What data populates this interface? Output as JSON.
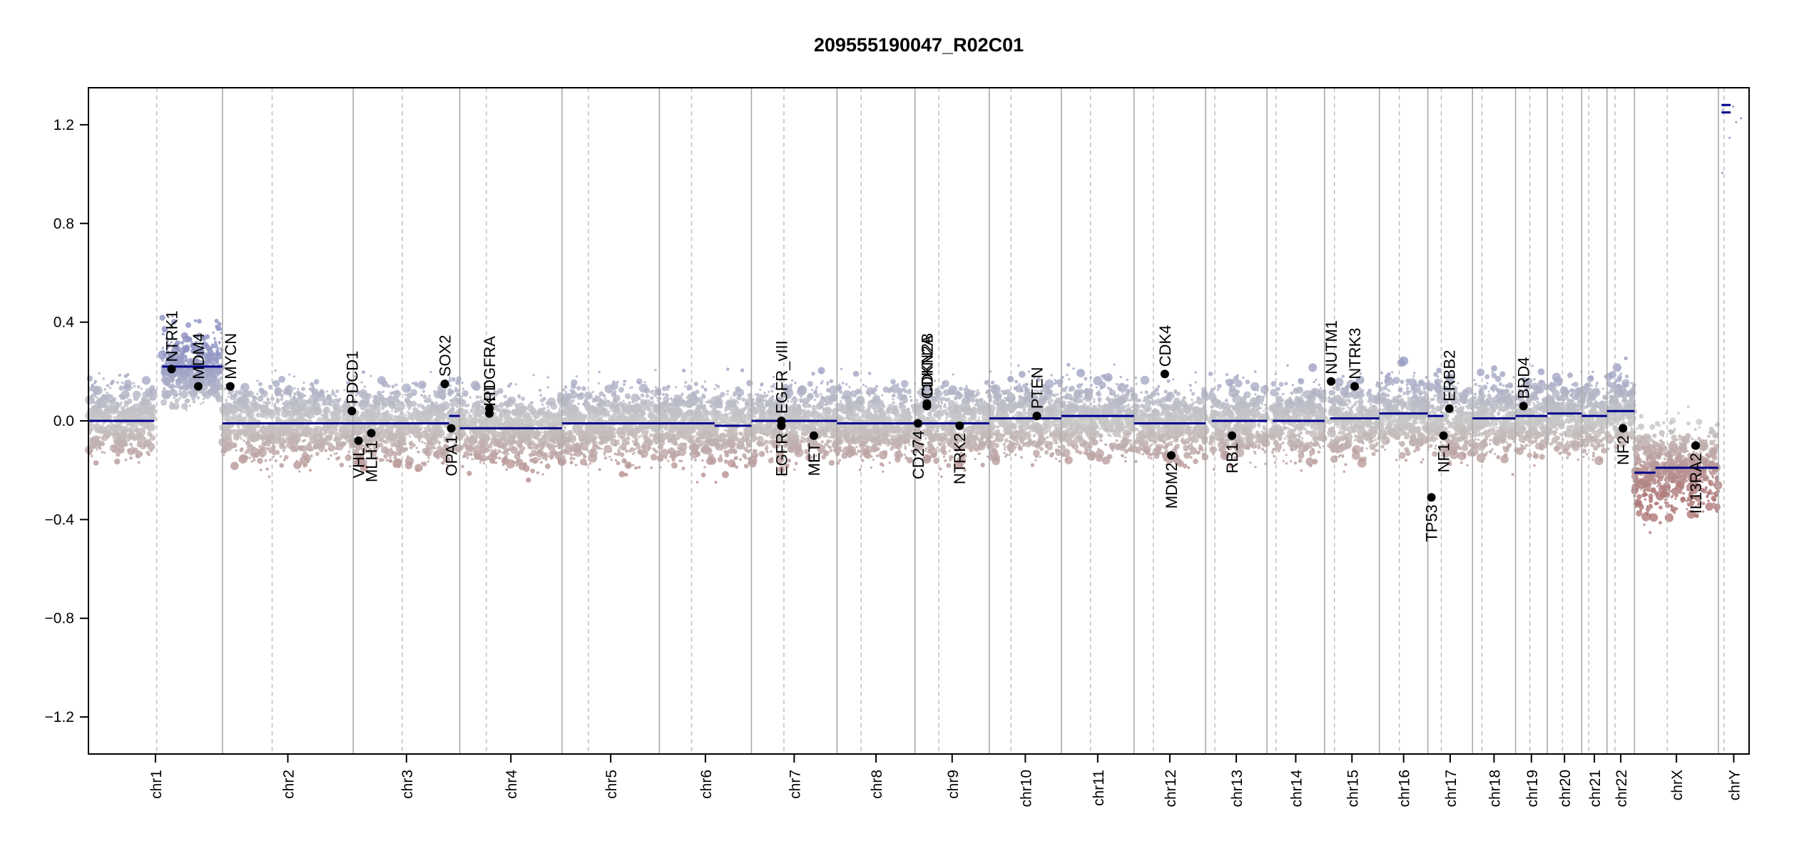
{
  "chart_data": {
    "type": "scatter",
    "title": "209555190047_R02C01",
    "xlabel": "",
    "ylabel": "",
    "ylim": [
      -1.35,
      1.35
    ],
    "y_ticks": [
      -1.2,
      -0.8,
      -0.4,
      0.0,
      0.4,
      0.8,
      1.2
    ],
    "y_tick_labels": [
      "−1.2",
      "−0.8",
      "−0.4",
      "0.0",
      "0.4",
      "0.8",
      "1.2"
    ],
    "grid": false,
    "colors": {
      "gain": "#8f93c2",
      "neutral": "#c8c8c8",
      "loss": "#b07a7a",
      "segment": "#00008b",
      "gene_point": "#000000",
      "divider": "#aaaaaa"
    },
    "chromosomes": [
      {
        "name": "chr1",
        "length": 249,
        "centromere": 0.51
      },
      {
        "name": "chr2",
        "length": 243,
        "centromere": 0.38
      },
      {
        "name": "chr3",
        "length": 198,
        "centromere": 0.46
      },
      {
        "name": "chr4",
        "length": 190,
        "centromere": 0.26
      },
      {
        "name": "chr5",
        "length": 181,
        "centromere": 0.27
      },
      {
        "name": "chr6",
        "length": 171,
        "centromere": 0.35
      },
      {
        "name": "chr7",
        "length": 159,
        "centromere": 0.38
      },
      {
        "name": "chr8",
        "length": 145,
        "centromere": 0.31
      },
      {
        "name": "chr9",
        "length": 138,
        "centromere": 0.32
      },
      {
        "name": "chr10",
        "length": 134,
        "centromere": 0.3
      },
      {
        "name": "chr11",
        "length": 135,
        "centromere": 0.4
      },
      {
        "name": "chr12",
        "length": 133,
        "centromere": 0.27
      },
      {
        "name": "chr13",
        "length": 114,
        "centromere": 0.15
      },
      {
        "name": "chr14",
        "length": 107,
        "centromere": 0.16
      },
      {
        "name": "chr15",
        "length": 102,
        "centromere": 0.18
      },
      {
        "name": "chr16",
        "length": 90,
        "centromere": 0.41
      },
      {
        "name": "chr17",
        "length": 83,
        "centromere": 0.3
      },
      {
        "name": "chr18",
        "length": 80,
        "centromere": 0.22
      },
      {
        "name": "chr19",
        "length": 59,
        "centromere": 0.45
      },
      {
        "name": "chr20",
        "length": 64,
        "centromere": 0.44
      },
      {
        "name": "chr21",
        "length": 47,
        "centromere": 0.28
      },
      {
        "name": "chr22",
        "length": 51,
        "centromere": 0.29
      },
      {
        "name": "chrX",
        "length": 156,
        "centromere": 0.39
      },
      {
        "name": "chrY",
        "length": 57,
        "centromere": 0.18
      }
    ],
    "segments": [
      {
        "chr": "chr1",
        "start": 0.0,
        "end": 0.49,
        "value": 0.0
      },
      {
        "chr": "chr1",
        "start": 0.55,
        "end": 1.0,
        "value": 0.22
      },
      {
        "chr": "chr2",
        "start": 0.0,
        "end": 1.0,
        "value": -0.01
      },
      {
        "chr": "chr3",
        "start": 0.0,
        "end": 0.9,
        "value": -0.01
      },
      {
        "chr": "chr3",
        "start": 0.9,
        "end": 1.0,
        "value": 0.02
      },
      {
        "chr": "chr4",
        "start": 0.0,
        "end": 1.0,
        "value": -0.03
      },
      {
        "chr": "chr5",
        "start": 0.0,
        "end": 1.0,
        "value": -0.01
      },
      {
        "chr": "chr6",
        "start": 0.0,
        "end": 0.6,
        "value": -0.01
      },
      {
        "chr": "chr6",
        "start": 0.6,
        "end": 1.0,
        "value": -0.02
      },
      {
        "chr": "chr7",
        "start": 0.0,
        "end": 1.0,
        "value": 0.0
      },
      {
        "chr": "chr8",
        "start": 0.0,
        "end": 1.0,
        "value": -0.01
      },
      {
        "chr": "chr9",
        "start": 0.0,
        "end": 1.0,
        "value": -0.01
      },
      {
        "chr": "chr10",
        "start": 0.0,
        "end": 1.0,
        "value": 0.01
      },
      {
        "chr": "chr11",
        "start": 0.0,
        "end": 1.0,
        "value": 0.02
      },
      {
        "chr": "chr12",
        "start": 0.0,
        "end": 1.0,
        "value": -0.01
      },
      {
        "chr": "chr13",
        "start": 0.1,
        "end": 1.0,
        "value": 0.0
      },
      {
        "chr": "chr14",
        "start": 0.1,
        "end": 1.0,
        "value": 0.0
      },
      {
        "chr": "chr15",
        "start": 0.1,
        "end": 1.0,
        "value": 0.01
      },
      {
        "chr": "chr16",
        "start": 0.0,
        "end": 1.0,
        "value": 0.03
      },
      {
        "chr": "chr17",
        "start": 0.0,
        "end": 0.35,
        "value": 0.02
      },
      {
        "chr": "chr18",
        "start": 0.0,
        "end": 1.0,
        "value": 0.01
      },
      {
        "chr": "chr19",
        "start": 0.0,
        "end": 1.0,
        "value": 0.02
      },
      {
        "chr": "chr20",
        "start": 0.0,
        "end": 1.0,
        "value": 0.03
      },
      {
        "chr": "chr21",
        "start": 0.0,
        "end": 1.0,
        "value": 0.02
      },
      {
        "chr": "chr22",
        "start": 0.0,
        "end": 1.0,
        "value": 0.04
      },
      {
        "chr": "chrX",
        "start": 0.0,
        "end": 0.25,
        "value": -0.21
      },
      {
        "chr": "chrX",
        "start": 0.25,
        "end": 1.0,
        "value": -0.19
      },
      {
        "chr": "chrY",
        "start": 0.1,
        "end": 0.4,
        "value": 1.28
      },
      {
        "chr": "chrY",
        "start": 0.1,
        "end": 0.4,
        "value": 1.25
      }
    ],
    "genes": [
      {
        "name": "NTRK1",
        "chr": "chr1",
        "pos": 0.62,
        "value": 0.21,
        "label_side": "up"
      },
      {
        "name": "MDM4",
        "chr": "chr1",
        "pos": 0.82,
        "value": 0.14,
        "label_side": "up"
      },
      {
        "name": "MYCN",
        "chr": "chr2",
        "pos": 0.06,
        "value": 0.14,
        "label_side": "up"
      },
      {
        "name": "PDCD1",
        "chr": "chr2",
        "pos": 0.99,
        "value": 0.04,
        "label_side": "up"
      },
      {
        "name": "VHL",
        "chr": "chr3",
        "pos": 0.05,
        "value": -0.08,
        "label_side": "down"
      },
      {
        "name": "MLH1",
        "chr": "chr3",
        "pos": 0.17,
        "value": -0.05,
        "label_side": "down"
      },
      {
        "name": "SOX2",
        "chr": "chr3",
        "pos": 0.86,
        "value": 0.15,
        "label_side": "up"
      },
      {
        "name": "OPA1",
        "chr": "chr3",
        "pos": 0.92,
        "value": -0.03,
        "label_side": "down"
      },
      {
        "name": "KIT",
        "chr": "chr4",
        "pos": 0.29,
        "value": 0.03,
        "label_side": "up"
      },
      {
        "name": "PDGFRA",
        "chr": "chr4",
        "pos": 0.29,
        "value": 0.05,
        "label_side": "up"
      },
      {
        "name": "EGFR_vIII",
        "chr": "chr7",
        "pos": 0.35,
        "value": 0.0,
        "label_side": "up"
      },
      {
        "name": "EGFR",
        "chr": "chr7",
        "pos": 0.35,
        "value": -0.02,
        "label_side": "down"
      },
      {
        "name": "MET",
        "chr": "chr7",
        "pos": 0.73,
        "value": -0.06,
        "label_side": "down"
      },
      {
        "name": "CD274",
        "chr": "chr9",
        "pos": 0.04,
        "value": -0.01,
        "label_side": "down"
      },
      {
        "name": "CDKN2A",
        "chr": "chr9",
        "pos": 0.16,
        "value": 0.06,
        "label_side": "up"
      },
      {
        "name": "CDKN2B",
        "chr": "chr9",
        "pos": 0.16,
        "value": 0.07,
        "label_side": "up"
      },
      {
        "name": "NTRK2",
        "chr": "chr9",
        "pos": 0.6,
        "value": -0.02,
        "label_side": "down"
      },
      {
        "name": "PTEN",
        "chr": "chr10",
        "pos": 0.66,
        "value": 0.02,
        "label_side": "up"
      },
      {
        "name": "CDK4",
        "chr": "chr12",
        "pos": 0.43,
        "value": 0.19,
        "label_side": "up"
      },
      {
        "name": "MDM2",
        "chr": "chr12",
        "pos": 0.52,
        "value": -0.14,
        "label_side": "down"
      },
      {
        "name": "RB1",
        "chr": "chr13",
        "pos": 0.43,
        "value": -0.06,
        "label_side": "down"
      },
      {
        "name": "NUTM1",
        "chr": "chr15",
        "pos": 0.12,
        "value": 0.16,
        "label_side": "up"
      },
      {
        "name": "NTRK3",
        "chr": "chr15",
        "pos": 0.55,
        "value": 0.14,
        "label_side": "up"
      },
      {
        "name": "TP53",
        "chr": "chr17",
        "pos": 0.08,
        "value": -0.31,
        "label_side": "down"
      },
      {
        "name": "NF1",
        "chr": "chr17",
        "pos": 0.35,
        "value": -0.06,
        "label_side": "down"
      },
      {
        "name": "ERBB2",
        "chr": "chr17",
        "pos": 0.48,
        "value": 0.05,
        "label_side": "up"
      },
      {
        "name": "BRD4",
        "chr": "chr19",
        "pos": 0.25,
        "value": 0.06,
        "label_side": "up"
      },
      {
        "name": "NF2",
        "chr": "chr22",
        "pos": 0.58,
        "value": -0.03,
        "label_side": "down"
      },
      {
        "name": "IL13RA2",
        "chr": "chrX",
        "pos": 0.73,
        "value": -0.1,
        "label_side": "down"
      }
    ]
  }
}
